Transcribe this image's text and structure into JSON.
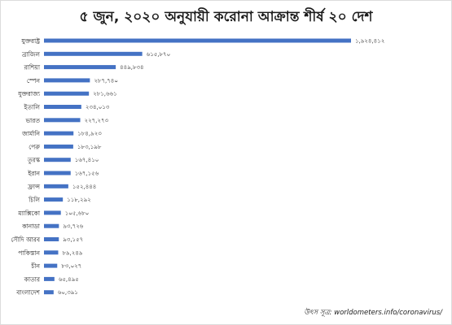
{
  "chart_data": {
    "type": "bar",
    "orientation": "horizontal",
    "title": "৫ জুন, ২০২০ অনুযায়ী করোনা আক্রান্ত শীর্ষ ২০ দেশ",
    "xlabel": "",
    "ylabel": "",
    "grid": false,
    "bar_color": "#4472C4",
    "xlim": [
      0,
      1924412
    ],
    "categories": [
      "যুক্তরাষ্ট্র",
      "ব্রাজিল",
      "রাশিয়া",
      "স্পেন",
      "যুক্তরাজ্য",
      "ইতালি",
      "ভারত",
      "জার্মানি",
      "পেরু",
      "তুরস্ক",
      "ইরান",
      "ফ্রান্স",
      "চিলি",
      "ম্যাক্সিকো",
      "কানাডা",
      "সৌদি আরব",
      "পাকিস্তান",
      "চীন",
      "কাতার",
      "বাংলাদেশ"
    ],
    "values": [
      1924412,
      615870,
      449834,
      287740,
      281661,
      234013,
      227273,
      184923,
      183198,
      167410,
      167156,
      152444,
      118292,
      105680,
      93726,
      93157,
      89249,
      83027,
      65495,
      60391
    ],
    "value_labels": [
      "১,৯২৪,৪১২",
      "৬১৫,৮৭০",
      "৪৪৯,৮৩৪",
      "২৮৭,৭৪০",
      "২৮১,৬৬১",
      "২৩৪,০১৩",
      "২২৭,২৭৩",
      "১৮৪,৯২৩",
      "১৮৩,১৯৮",
      "১৬৭,৪১০",
      "১৬৭,১৫৬",
      "১৫২,৪৪৪",
      "১১৮,২৯২",
      "১০৫,৬৮০",
      "৯৩,৭২৬",
      "৯৩,১৫৭",
      "৮৯,২৪৯",
      "৮৩,০২৭",
      "৬৫,৪৯৫",
      "৬০,৩৯১"
    ]
  },
  "source_note": "উৎস সূত্র: worldometers.info/coronavirus/"
}
